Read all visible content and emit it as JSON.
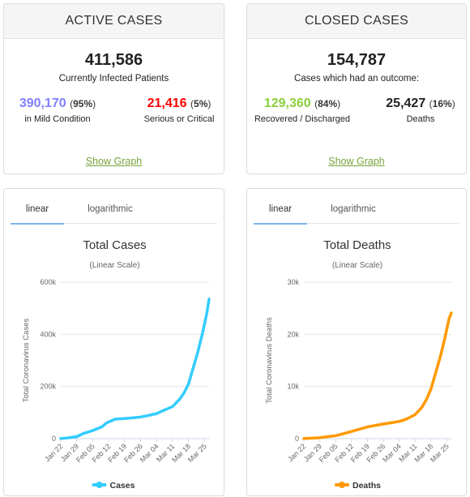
{
  "active": {
    "header": "ACTIVE CASES",
    "total": "411,586",
    "total_label": "Currently Infected Patients",
    "mild_value": "390,170",
    "mild_pct": "95%",
    "mild_label": "in Mild Condition",
    "serious_value": "21,416",
    "serious_pct": "5%",
    "serious_label": "Serious or Critical",
    "show_graph": "Show Graph"
  },
  "closed": {
    "header": "CLOSED CASES",
    "total": "154,787",
    "total_label": "Cases which had an outcome:",
    "recovered_value": "129,360",
    "recovered_pct": "84%",
    "recovered_label": "Recovered / Discharged",
    "deaths_value": "25,427",
    "deaths_pct": "16%",
    "deaths_label": "Deaths",
    "show_graph": "Show Graph"
  },
  "colors": {
    "mild": "#8080ff",
    "serious": "#ff0000",
    "recovered": "#8acf3c",
    "cases_line": "#33ccff",
    "deaths_line": "#ff9900"
  },
  "tabs": {
    "linear": "linear",
    "logarithmic": "logarithmic"
  },
  "chart_data": [
    {
      "type": "line",
      "title": "Total Cases",
      "subtitle": "(Linear Scale)",
      "ylabel": "Total Coronavirus Cases",
      "xlabel": "",
      "ylim": [
        0,
        600000
      ],
      "yticks": [
        0,
        200000,
        400000,
        600000
      ],
      "ytick_labels": [
        "0",
        "200k",
        "400k",
        "600k"
      ],
      "x_tick_labels": [
        "Jan 22",
        "Jan 29",
        "Feb 05",
        "Feb 12",
        "Feb 19",
        "Feb 26",
        "Mar 04",
        "Mar 11",
        "Mar 18",
        "Mar 25"
      ],
      "x_tick_days": [
        0,
        7,
        14,
        21,
        28,
        35,
        42,
        49,
        56,
        63
      ],
      "grid": true,
      "legend": "bottom",
      "series": [
        {
          "name": "Cases",
          "x": [
            0,
            3,
            7,
            10,
            14,
            18,
            20,
            21,
            24,
            28,
            32,
            35,
            38,
            42,
            45,
            49,
            52,
            54,
            56,
            58,
            60,
            62,
            64,
            65
          ],
          "values": [
            580,
            2800,
            7800,
            20000,
            31000,
            45000,
            60000,
            64000,
            75000,
            77000,
            80000,
            83000,
            88000,
            96000,
            108000,
            123000,
            150000,
            175000,
            210000,
            270000,
            330000,
            400000,
            480000,
            535000
          ]
        }
      ]
    },
    {
      "type": "line",
      "title": "Total Deaths",
      "subtitle": "(Linear Scale)",
      "ylabel": "Total Coronavirus Deaths",
      "xlabel": "",
      "ylim": [
        0,
        30000
      ],
      "yticks": [
        0,
        10000,
        20000,
        30000
      ],
      "ytick_labels": [
        "0",
        "10k",
        "20k",
        "30k"
      ],
      "x_tick_labels": [
        "Jan 22",
        "Jan 29",
        "Feb 05",
        "Feb 12",
        "Feb 19",
        "Feb 26",
        "Mar 04",
        "Mar 11",
        "Mar 18",
        "Mar 25"
      ],
      "x_tick_days": [
        0,
        7,
        14,
        21,
        28,
        35,
        42,
        49,
        56,
        63
      ],
      "grid": true,
      "legend": "bottom",
      "series": [
        {
          "name": "Deaths",
          "x": [
            0,
            7,
            14,
            21,
            28,
            35,
            42,
            45,
            49,
            52,
            54,
            56,
            58,
            60,
            62,
            64,
            65
          ],
          "values": [
            17,
            170,
            560,
            1370,
            2250,
            2800,
            3300,
            3700,
            4600,
            6000,
            7500,
            9500,
            12500,
            15500,
            19000,
            23000,
            24100
          ]
        }
      ]
    }
  ]
}
